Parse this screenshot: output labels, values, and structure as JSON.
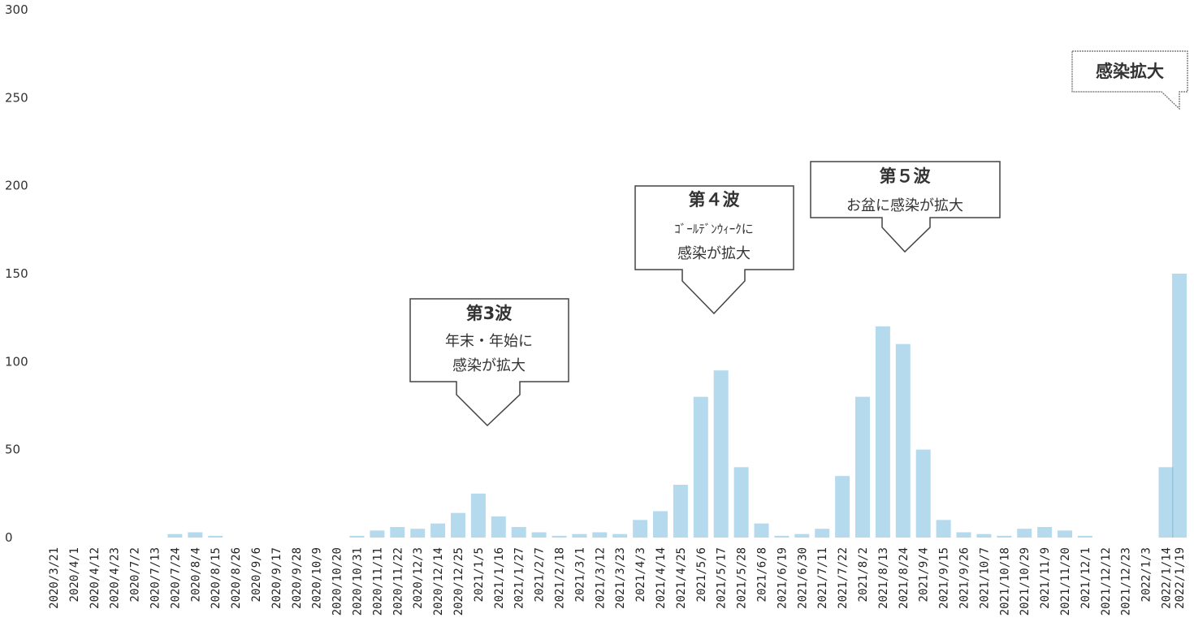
{
  "chart_data": {
    "type": "bar",
    "title": "",
    "xlabel": "",
    "ylabel": "",
    "ylim": [
      0,
      300
    ],
    "yticks": [
      0,
      50,
      100,
      150,
      200,
      250,
      300
    ],
    "grid": false,
    "bar_color": "#5aaed6",
    "x_tick_labels": [
      "2020/3/21",
      "2020/4/1",
      "2020/4/12",
      "2020/4/23",
      "2020/7/2",
      "2020/7/13",
      "2020/7/24",
      "2020/8/4",
      "2020/8/15",
      "2020/8/26",
      "2020/9/6",
      "2020/9/17",
      "2020/9/28",
      "2020/10/9",
      "2020/10/20",
      "2020/10/31",
      "2020/11/11",
      "2020/11/22",
      "2020/12/3",
      "2020/12/14",
      "2020/12/25",
      "2021/1/5",
      "2021/1/16",
      "2021/1/27",
      "2021/2/7",
      "2021/2/18",
      "2021/3/1",
      "2021/3/12",
      "2021/3/23",
      "2021/4/3",
      "2021/4/14",
      "2021/4/25",
      "2021/5/6",
      "2021/5/17",
      "2021/5/28",
      "2021/6/8",
      "2021/6/19",
      "2021/6/30",
      "2021/7/11",
      "2021/7/22",
      "2021/8/2",
      "2021/8/13",
      "2021/8/24",
      "2021/9/4",
      "2021/9/15",
      "2021/9/26",
      "2021/10/7",
      "2021/10/18",
      "2021/10/29",
      "2021/11/9",
      "2021/11/20",
      "2021/12/1",
      "2021/12/12",
      "2021/12/23",
      "2022/1/3",
      "2022/1/14",
      "2022/1/19"
    ],
    "values": [
      0,
      0,
      0,
      0,
      0,
      0,
      2,
      3,
      1,
      0,
      0,
      0,
      0,
      0,
      0,
      1,
      4,
      6,
      5,
      8,
      14,
      25,
      12,
      6,
      3,
      1,
      2,
      3,
      2,
      10,
      15,
      30,
      80,
      95,
      40,
      8,
      1,
      2,
      5,
      35,
      80,
      120,
      110,
      50,
      10,
      3,
      2,
      1,
      5,
      6,
      4,
      1,
      0,
      0,
      0,
      40,
      150
    ],
    "callouts": [
      {
        "title": "第3波",
        "lines": [
          "年末・年始に",
          "感染が拡大"
        ]
      },
      {
        "title": "第４波",
        "lines": [
          "ｺﾞｰﾙﾃﾞﾝｳｨｰｸに",
          "感染が拡大"
        ]
      },
      {
        "title": "第５波",
        "lines": [
          "お盆に感染が拡大"
        ]
      },
      {
        "title": "感染拡大",
        "lines": []
      }
    ]
  }
}
